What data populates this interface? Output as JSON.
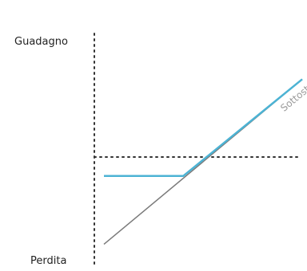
{
  "chart_data": {
    "type": "line",
    "title": "",
    "y_axis": {
      "top_label": "Guadagno",
      "bottom_label": "Perdita"
    },
    "x_range": [
      0,
      10
    ],
    "y_range": [
      -5,
      5
    ],
    "zero_line": {
      "visible": true,
      "style": "dotted"
    },
    "series": [
      {
        "name": "Sottostante",
        "color": "#7a7a7a",
        "points": [
          [
            0,
            -4.6
          ],
          [
            10,
            4.1
          ]
        ]
      },
      {
        "name": "",
        "color": "#4cb3d4",
        "points": [
          [
            0,
            -1.0
          ],
          [
            4.0,
            -1.0
          ],
          [
            10,
            4.1
          ]
        ]
      }
    ],
    "annotations": [
      {
        "text": "Sottostante",
        "series": 0
      }
    ]
  }
}
